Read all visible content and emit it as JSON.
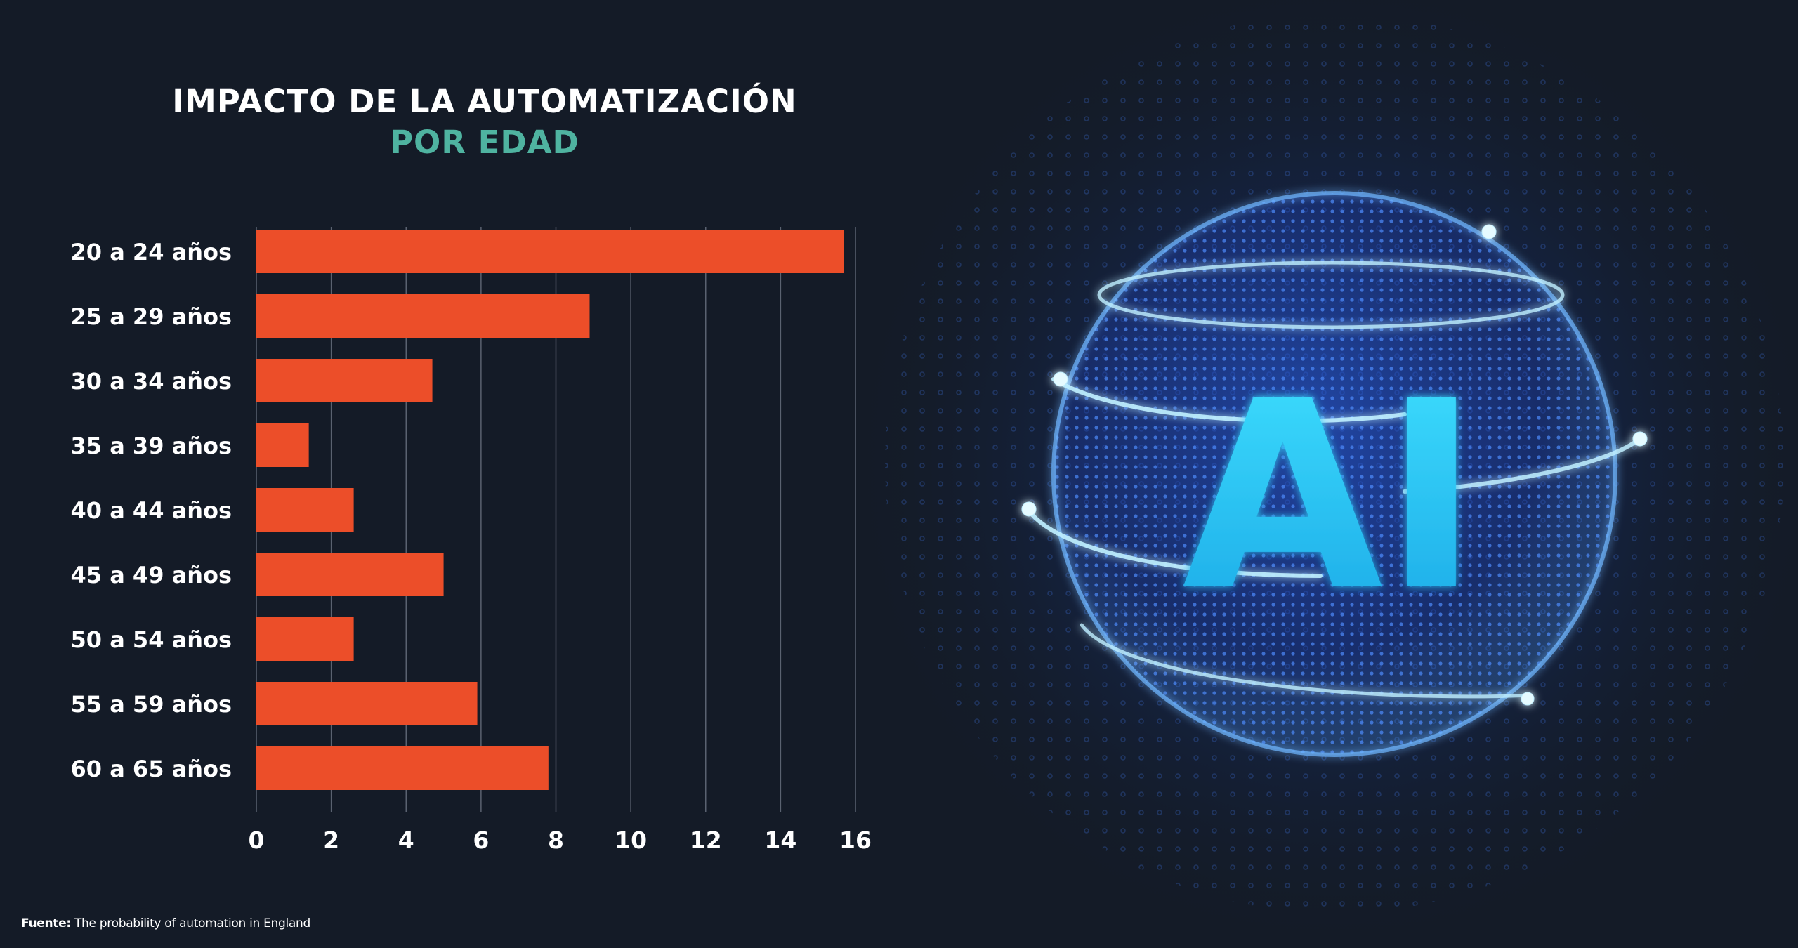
{
  "title": "IMPACTO DE LA AUTOMATIZACIÓN",
  "subtitle": "POR EDAD",
  "source_label": "Fuente:",
  "source_text": "The probability of automation in England",
  "illustration_text": "AI",
  "colors": {
    "background": "#141b27",
    "bar": "#ec4e29",
    "title": "#ffffff",
    "subtitle": "#4fb3a0",
    "grid": "#5a6270",
    "ai_glow": "#2fd3f5",
    "sphere": "#2f6df0"
  },
  "chart_data": {
    "type": "bar",
    "orientation": "horizontal",
    "title": "IMPACTO DE LA AUTOMATIZACIÓN",
    "subtitle": "POR EDAD",
    "xlabel": "",
    "ylabel": "",
    "categories": [
      "20 a 24 años",
      "25 a 29 años",
      "30 a 34 años",
      "35 a 39 años",
      "40 a 44 años",
      "45 a 49 años",
      "50 a 54 años",
      "55 a 59 años",
      "60 a 65 años"
    ],
    "values": [
      15.7,
      8.9,
      4.7,
      1.4,
      2.6,
      5.0,
      2.6,
      5.9,
      7.8
    ],
    "xlim": [
      0,
      16
    ],
    "xticks": [
      0,
      2,
      4,
      6,
      8,
      10,
      12,
      14,
      16
    ],
    "grid": true,
    "legend": "none"
  }
}
